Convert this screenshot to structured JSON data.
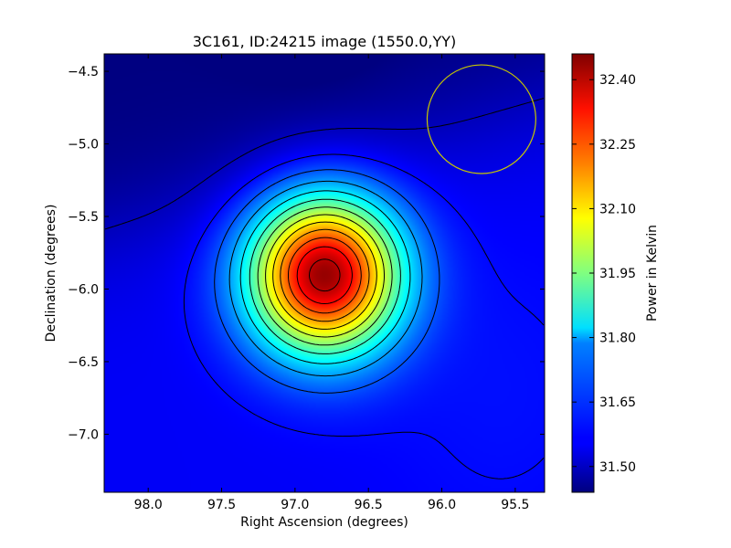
{
  "chart_data": {
    "type": "heatmap",
    "title": "3C161, ID:24215 image (1550.0,YY)",
    "xlabel": "Right Ascension (degrees)",
    "ylabel": "Declination (degrees)",
    "xlim": [
      98.3,
      95.3
    ],
    "ylim": [
      -7.4,
      -4.38
    ],
    "x_ticks": [
      98.0,
      97.5,
      97.0,
      96.5,
      96.0,
      95.5
    ],
    "x_tick_labels": [
      "98.0",
      "97.5",
      "97.0",
      "96.5",
      "96.0",
      "95.5"
    ],
    "y_ticks": [
      -4.5,
      -5.0,
      -5.5,
      -6.0,
      -6.5,
      -7.0
    ],
    "y_tick_labels": [
      "−4.5",
      "−5.0",
      "−5.5",
      "−6.0",
      "−6.5",
      "−7.0"
    ],
    "colorbar": {
      "label": "Power in Kelvin",
      "range": [
        31.44,
        32.46
      ],
      "ticks": [
        31.5,
        31.65,
        31.8,
        31.95,
        32.1,
        32.25,
        32.4
      ],
      "tick_labels": [
        "31.50",
        "31.65",
        "31.80",
        "31.95",
        "32.10",
        "32.25",
        "32.40"
      ],
      "colormap": "jet"
    },
    "peak": {
      "ra": 96.8,
      "dec": -5.9,
      "value": 32.44
    },
    "background_value": 31.56,
    "contours": "black contour lines",
    "beam_circle": {
      "ra": 95.73,
      "dec": -4.83,
      "radius_deg": 0.37,
      "color": "#c8c800"
    }
  }
}
